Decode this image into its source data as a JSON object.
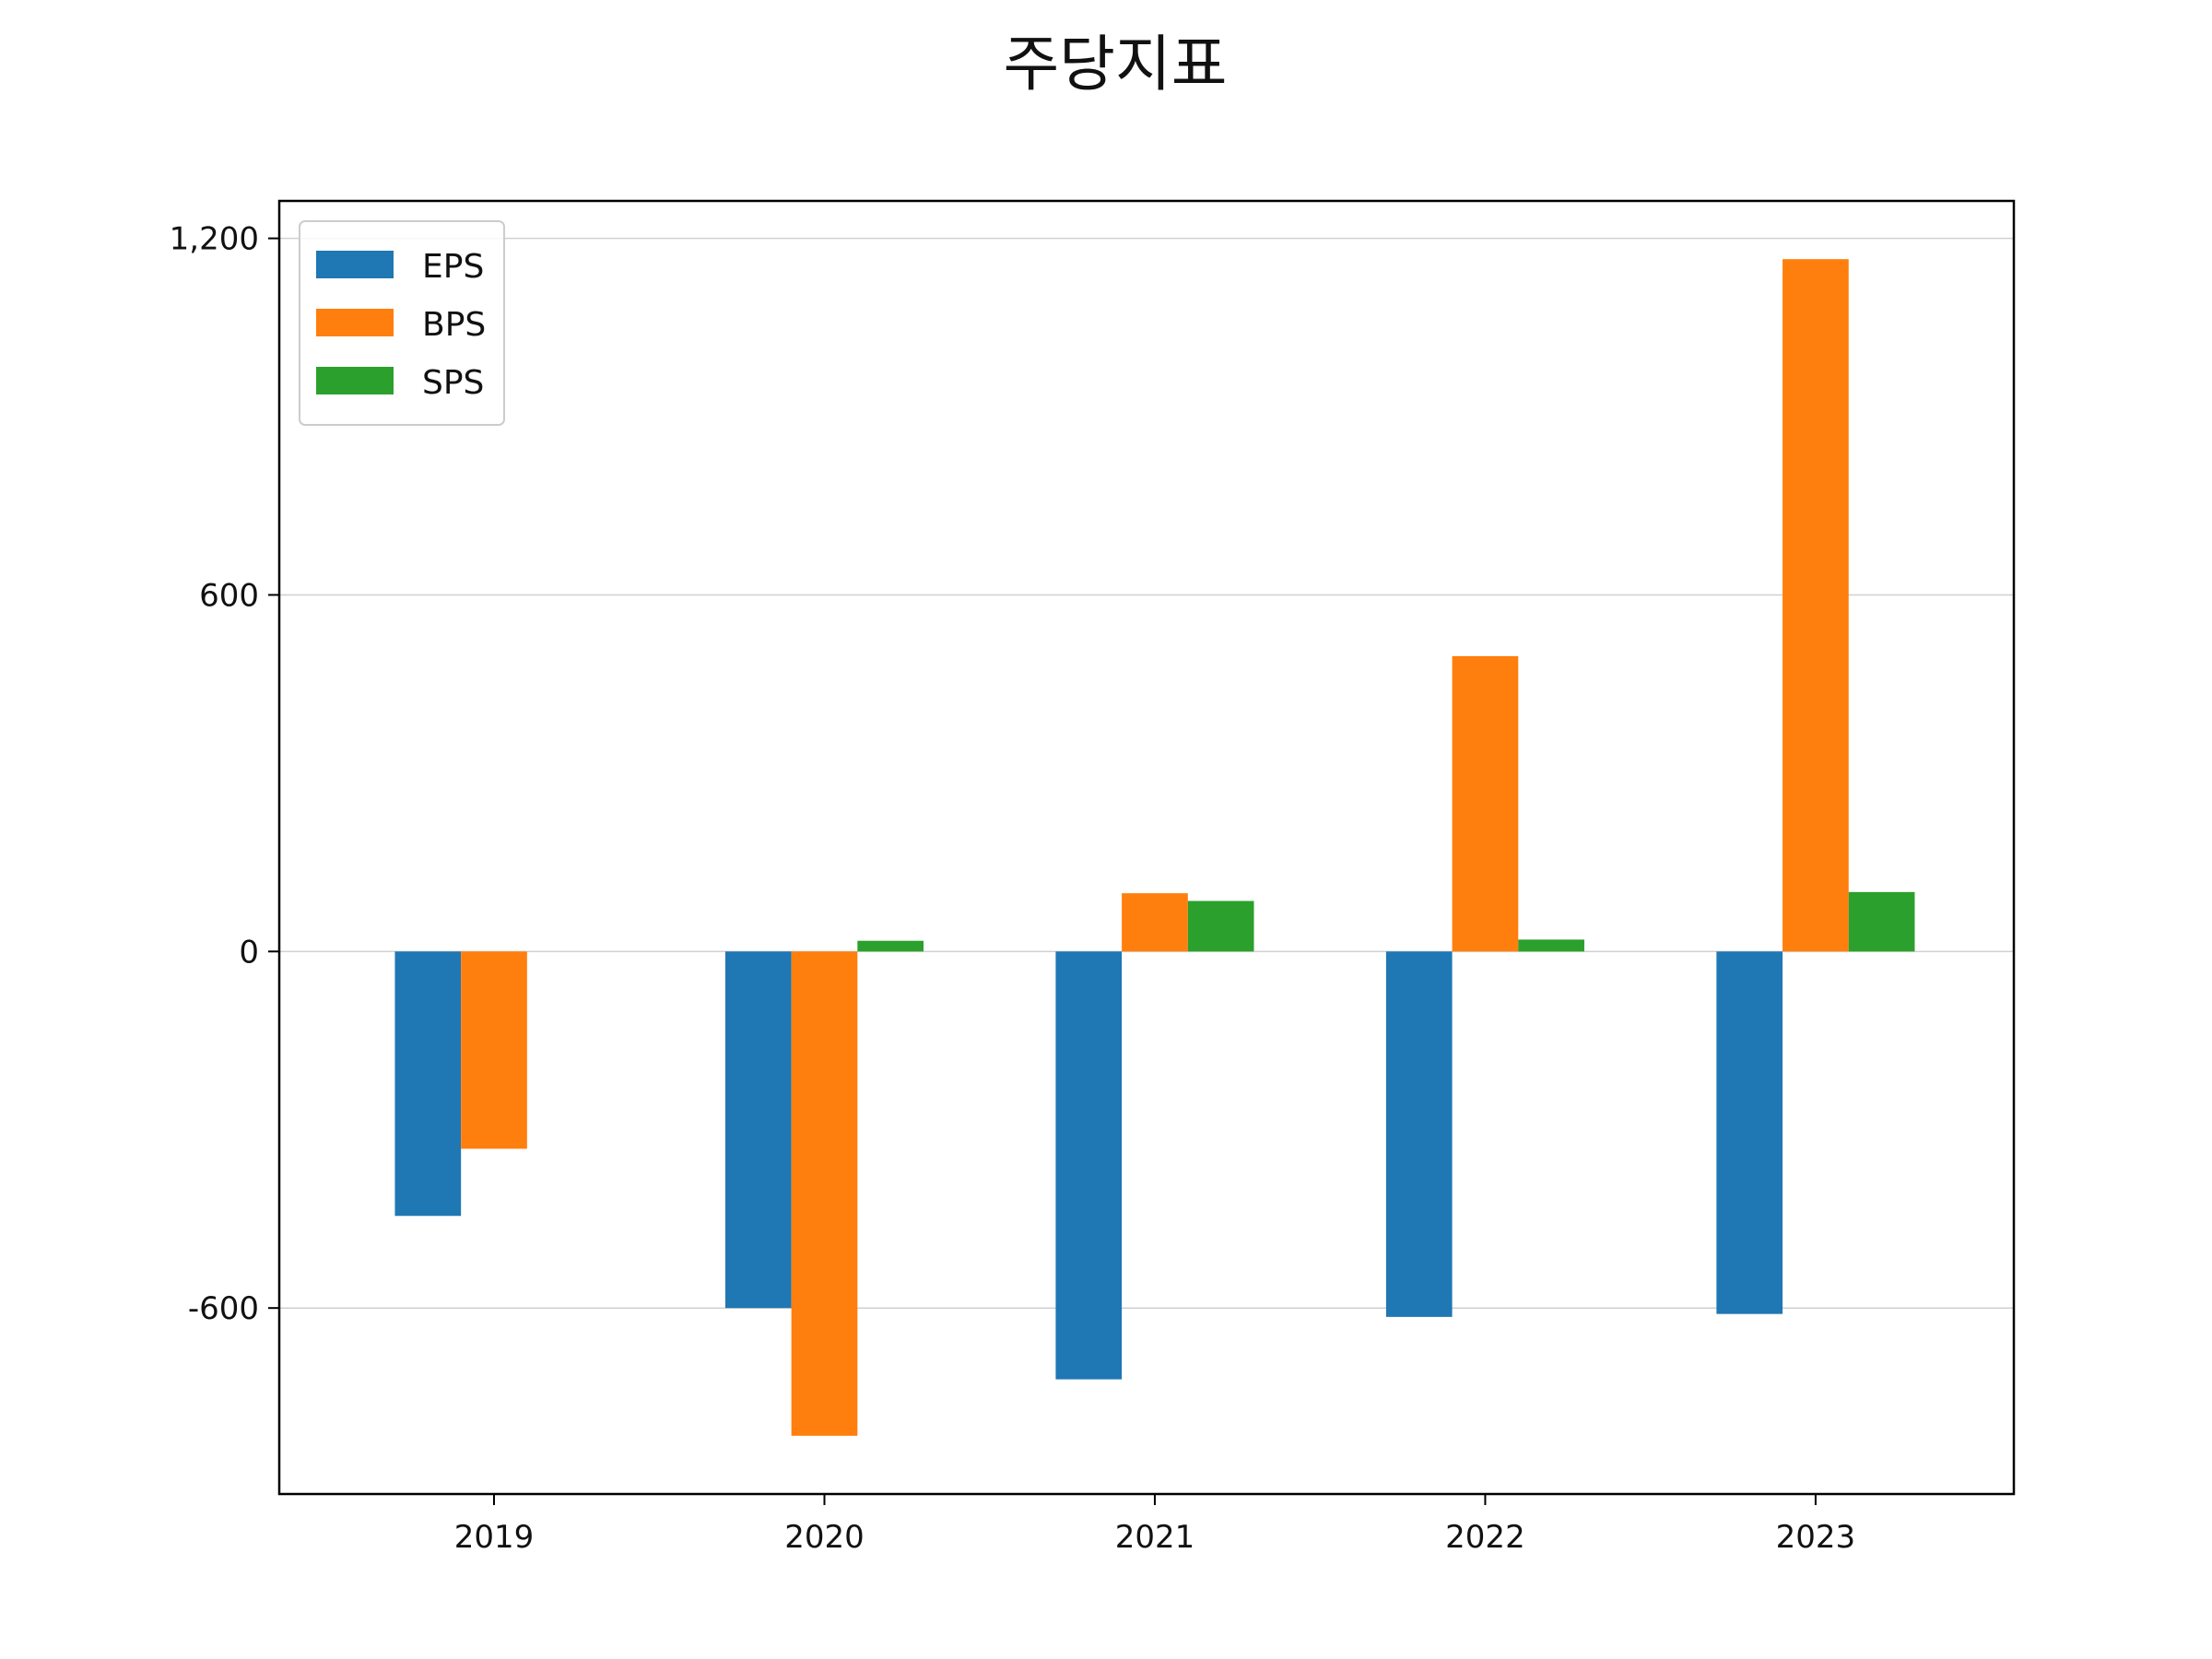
{
  "chart_data": {
    "type": "bar",
    "title": "주당지표",
    "xlabel": "",
    "ylabel": "",
    "categories": [
      "2019",
      "2020",
      "2021",
      "2022",
      "2023"
    ],
    "series": [
      {
        "name": "EPS",
        "color": "#1f77b4",
        "values": [
          -445,
          -600,
          -720,
          -615,
          -610
        ]
      },
      {
        "name": "BPS",
        "color": "#ff7f0e",
        "values": [
          -332,
          -815,
          98,
          497,
          1165
        ]
      },
      {
        "name": "SPS",
        "color": "#2ca02c",
        "values": [
          0,
          18,
          85,
          20,
          100
        ]
      }
    ],
    "ylim": [
      -913,
      1263
    ],
    "yticks": [
      -600,
      0,
      600,
      1200
    ],
    "ytick_labels": [
      "-600",
      "0",
      "600",
      "1,200"
    ],
    "grid": true,
    "legend_position": "top-left"
  }
}
